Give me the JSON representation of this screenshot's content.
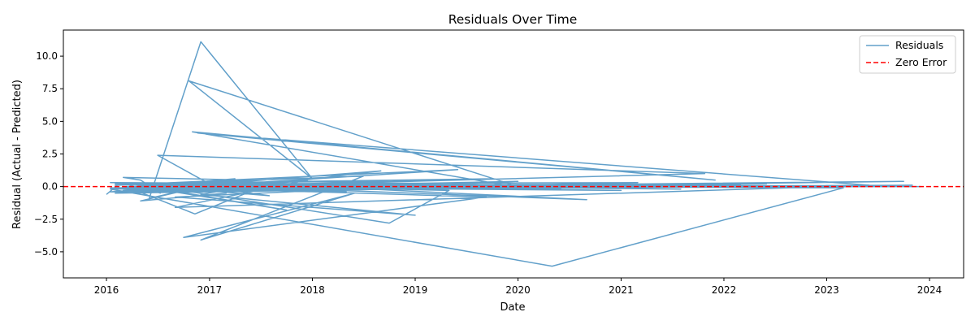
{
  "chart_data": {
    "type": "line",
    "title": "Residuals Over Time",
    "xlabel": "Date",
    "ylabel": "Residual (Actual - Predicted)",
    "xlim": [
      "2015-08-01",
      "2024-05-01"
    ],
    "ylim": [
      -7.0,
      12.0
    ],
    "x_ticks": [
      "2016",
      "2017",
      "2018",
      "2019",
      "2020",
      "2021",
      "2022",
      "2023",
      "2024"
    ],
    "y_ticks": [
      -5.0,
      -2.5,
      0.0,
      2.5,
      5.0,
      7.5,
      10.0
    ],
    "y_tick_labels": [
      "−5.0",
      "−2.5",
      "0.0",
      "2.5",
      "5.0",
      "7.5",
      "10.0"
    ],
    "grid": false,
    "legend_position": "top-right",
    "series": [
      {
        "name": "Residuals",
        "style": "solid",
        "color": "#1f77b4",
        "points": [
          [
            "2016-01-01",
            -0.6
          ],
          [
            "2016-02-20",
            0.3
          ],
          [
            "2016-07-10",
            -0.5
          ],
          [
            "2016-05-01",
            0.5
          ],
          [
            "2016-03-01",
            0.7
          ],
          [
            "2017-06-01",
            0.5
          ],
          [
            "2016-02-15",
            -0.1
          ],
          [
            "2017-08-01",
            0.2
          ],
          [
            "2016-11-10",
            -2.1
          ],
          [
            "2016-03-10",
            0.0
          ],
          [
            "2017-02-01",
            0.3
          ],
          [
            "2016-05-01",
            -1.1
          ],
          [
            "2017-03-01",
            -0.5
          ],
          [
            "2016-07-01",
            2.4
          ],
          [
            "2021-10-25",
            1.0
          ],
          [
            "2016-02-01",
            -0.2
          ],
          [
            "2017-04-01",
            0.6
          ],
          [
            "2016-06-01",
            -0.9
          ],
          [
            "2016-12-01",
            11.1
          ],
          [
            "2018-01-01",
            0.6
          ],
          [
            "2016-10-20",
            8.1
          ],
          [
            "2020-01-15",
            -0.1
          ],
          [
            "2016-11-01",
            4.2
          ],
          [
            "2021-12-01",
            0.5
          ],
          [
            "2016-11-20",
            4.1
          ],
          [
            "2023-06-01",
            0.1
          ],
          [
            "2016-09-01",
            -1.6
          ],
          [
            "2017-12-15",
            0.5
          ],
          [
            "2016-04-01",
            -0.3
          ],
          [
            "2019-06-01",
            1.3
          ],
          [
            "2016-02-01",
            0.1
          ],
          [
            "2018-07-01",
            0.8
          ],
          [
            "2016-12-01",
            -4.1
          ],
          [
            "2018-06-01",
            -0.5
          ],
          [
            "2016-10-01",
            -3.9
          ],
          [
            "2019-09-10",
            -0.8
          ],
          [
            "2017-03-01",
            -0.2
          ],
          [
            "2018-09-01",
            1.2
          ],
          [
            "2016-01-15",
            -0.4
          ],
          [
            "2023-10-01",
            0.4
          ],
          [
            "2016-01-15",
            -0.2
          ],
          [
            "2020-05-01",
            -6.1
          ],
          [
            "2023-03-01",
            -0.1
          ],
          [
            "2016-06-01",
            0.1
          ],
          [
            "2018-10-01",
            -2.8
          ],
          [
            "2019-05-01",
            -0.3
          ],
          [
            "2016-08-01",
            0.2
          ],
          [
            "2020-09-01",
            -1.0
          ],
          [
            "2017-01-01",
            0.4
          ],
          [
            "2016-04-01",
            -0.2
          ],
          [
            "2020-01-01",
            0.4
          ],
          [
            "2016-09-01",
            -0.8
          ],
          [
            "2019-01-01",
            -2.2
          ],
          [
            "2016-12-01",
            -0.6
          ],
          [
            "2017-07-01",
            0.2
          ],
          [
            "2016-08-01",
            -0.4
          ],
          [
            "2018-03-01",
            0.1
          ],
          [
            "2016-04-01",
            0.2
          ],
          [
            "2017-10-01",
            -1.8
          ],
          [
            "2016-06-01",
            -0.1
          ],
          [
            "2019-10-01",
            0.6
          ],
          [
            "2016-03-01",
            0.2
          ],
          [
            "2021-03-01",
            0.3
          ],
          [
            "2016-02-01",
            -0.5
          ],
          [
            "2022-06-01",
            0.2
          ],
          [
            "2016-05-01",
            0.1
          ],
          [
            "2017-08-01",
            -0.7
          ],
          [
            "2016-09-01",
            0.3
          ],
          [
            "2018-12-01",
            0.4
          ],
          [
            "2016-02-01",
            -0.1
          ],
          [
            "2023-11-01",
            0.1
          ],
          [
            "2016-07-01",
            -0.3
          ],
          [
            "2019-03-01",
            0.5
          ],
          [
            "2016-10-01",
            -0.2
          ],
          [
            "2020-11-01",
            0.1
          ],
          [
            "2016-01-15",
            0.3
          ],
          [
            "2021-08-01",
            -0.2
          ],
          [
            "2016-06-01",
            0.2
          ],
          [
            "2018-05-01",
            -0.4
          ],
          [
            "2016-11-01",
            0.1
          ],
          [
            "2022-10-01",
            0.0
          ],
          [
            "2016-03-01",
            -0.3
          ],
          [
            "2017-12-01",
            0.4
          ],
          [
            "2016-08-01",
            -0.1
          ],
          [
            "2019-07-01",
            0.3
          ],
          [
            "2016-04-01",
            0.0
          ],
          [
            "2021-01-01",
            -0.3
          ],
          [
            "2016-02-01",
            0.2
          ],
          [
            "2023-08-01",
            0.0
          ],
          [
            "2016-05-01",
            -0.2
          ],
          [
            "2018-08-01",
            0.3
          ],
          [
            "2016-10-01",
            0.1
          ],
          [
            "2020-06-01",
            -0.2
          ],
          [
            "2016-07-01",
            0.2
          ],
          [
            "2022-03-01",
            0.1
          ],
          [
            "2016-01-15",
            -0.1
          ],
          [
            "2023-12-01",
            0.0
          ]
        ]
      },
      {
        "name": "Zero Error",
        "style": "dashed",
        "color": "#ff0000",
        "y": 0
      }
    ]
  }
}
